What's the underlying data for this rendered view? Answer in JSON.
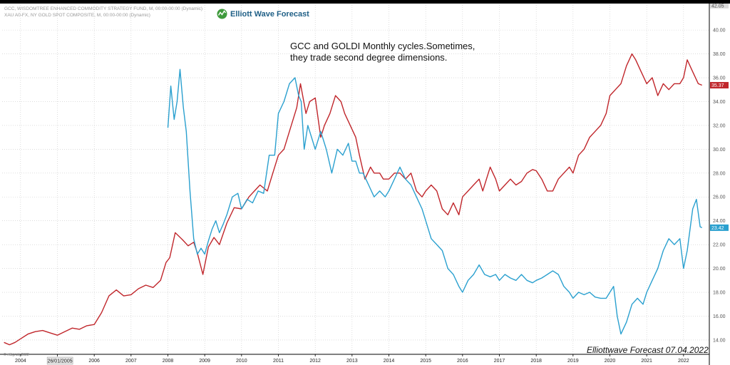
{
  "header": {
    "line1": "GCC, WISDOMTREE ENHANCED COMMODITY STRATEGY FUND, M, 00:00-00:00 (Dynamic)",
    "line2": "XAU A0-FX, NY GOLD SPOT COMPOSITE, M, 00:00-00:00 (Dynamic)"
  },
  "logo": {
    "text": "Elliott Wave Forecast"
  },
  "annotation": {
    "line1": "GCC and GOLDI Monthly cycles.Sometimes,",
    "line2": "they trade second degree dimensions."
  },
  "footer": {
    "brand": "Elliottwave Forecast  07.04.2022",
    "copyright": "© eSignal, 2022"
  },
  "colors": {
    "gcc": "#c0262b",
    "gold": "#2aa0cf",
    "gridline": "#c8c8c8",
    "axis": "#000000",
    "logo_green": "#3f9a3c",
    "logo_blue": "#1f5f86"
  },
  "chart_data": {
    "type": "line",
    "title": "",
    "xlabel": "",
    "ylabel": "",
    "xlim": [
      2003.5,
      2022.7
    ],
    "ylim": [
      12.8,
      42.1
    ],
    "y_ticks": [
      "14.00",
      "16.00",
      "18.00",
      "20.00",
      "22.00",
      "24.00",
      "26.00",
      "28.00",
      "30.00",
      "32.00",
      "34.00",
      "36.00",
      "38.00",
      "40.00"
    ],
    "x_ticks": [
      "2004",
      "2005",
      "2006",
      "2007",
      "2008",
      "2009",
      "2010",
      "2011",
      "2012",
      "2013",
      "2014",
      "2015",
      "2016",
      "2017",
      "2018",
      "2019",
      "2020",
      "2021",
      "2022"
    ],
    "x_tick_values": [
      2004,
      2005,
      2006,
      2007,
      2008,
      2009,
      2010,
      2011,
      2012,
      2013,
      2014,
      2015,
      2016,
      2017,
      2018,
      2019,
      2020,
      2021,
      2022
    ],
    "top_value_label": "42.05",
    "cursor_date_label": "26/01/2005",
    "cursor_date_value": 2005.07,
    "series": [
      {
        "name": "GCC",
        "color": "#c0262b",
        "last_value_label": "35.37",
        "x": [
          2003.55,
          2003.7,
          2003.85,
          2004.0,
          2004.2,
          2004.4,
          2004.6,
          2004.8,
          2005.0,
          2005.2,
          2005.4,
          2005.6,
          2005.8,
          2006.0,
          2006.2,
          2006.4,
          2006.6,
          2006.8,
          2007.0,
          2007.2,
          2007.4,
          2007.6,
          2007.8,
          2007.95,
          2008.05,
          2008.2,
          2008.4,
          2008.55,
          2008.7,
          2008.8,
          2008.95,
          2009.1,
          2009.25,
          2009.4,
          2009.6,
          2009.8,
          2010.0,
          2010.2,
          2010.35,
          2010.5,
          2010.7,
          2010.85,
          2011.0,
          2011.15,
          2011.3,
          2011.5,
          2011.6,
          2011.75,
          2011.85,
          2012.0,
          2012.15,
          2012.25,
          2012.4,
          2012.55,
          2012.7,
          2012.8,
          2012.95,
          2013.1,
          2013.2,
          2013.35,
          2013.5,
          2013.6,
          2013.75,
          2013.85,
          2014.0,
          2014.15,
          2014.3,
          2014.45,
          2014.6,
          2014.75,
          2014.9,
          2015.0,
          2015.15,
          2015.3,
          2015.45,
          2015.6,
          2015.75,
          2015.9,
          2016.0,
          2016.15,
          2016.3,
          2016.45,
          2016.55,
          2016.75,
          2016.9,
          2017.0,
          2017.15,
          2017.3,
          2017.45,
          2017.6,
          2017.75,
          2017.9,
          2018.0,
          2018.15,
          2018.3,
          2018.45,
          2018.6,
          2018.75,
          2018.9,
          2019.0,
          2019.15,
          2019.3,
          2019.45,
          2019.6,
          2019.75,
          2019.9,
          2020.0,
          2020.15,
          2020.3,
          2020.45,
          2020.6,
          2020.7,
          2020.85,
          2021.0,
          2021.15,
          2021.3,
          2021.45,
          2021.6,
          2021.75,
          2021.9,
          2022.0,
          2022.1,
          2022.25,
          2022.4,
          2022.5
        ],
        "values": [
          13.8,
          13.6,
          13.8,
          14.1,
          14.5,
          14.7,
          14.8,
          14.6,
          14.4,
          14.7,
          15.0,
          14.9,
          15.2,
          15.3,
          16.3,
          17.7,
          18.2,
          17.7,
          17.8,
          18.3,
          18.6,
          18.4,
          19.0,
          20.5,
          20.9,
          23.0,
          22.4,
          21.9,
          22.2,
          21.3,
          19.5,
          21.8,
          22.6,
          22.0,
          23.8,
          25.1,
          25.0,
          26.0,
          26.5,
          27.0,
          26.5,
          28.0,
          29.5,
          30.0,
          31.5,
          33.5,
          35.5,
          33.0,
          34.0,
          34.3,
          31.0,
          32.0,
          33.0,
          34.5,
          34.0,
          33.0,
          32.0,
          31.0,
          29.5,
          27.5,
          28.5,
          28.0,
          28.0,
          27.5,
          27.5,
          28.0,
          28.0,
          27.5,
          28.0,
          26.5,
          26.0,
          26.5,
          27.0,
          26.5,
          25.0,
          24.5,
          25.5,
          24.5,
          26.0,
          26.5,
          27.0,
          27.5,
          26.5,
          28.5,
          27.5,
          26.5,
          27.0,
          27.5,
          27.0,
          27.3,
          28.0,
          28.3,
          28.2,
          27.5,
          26.5,
          26.5,
          27.5,
          28.0,
          28.5,
          28.0,
          29.5,
          30.0,
          31.0,
          31.5,
          32.0,
          33.0,
          34.5,
          35.0,
          35.5,
          37.0,
          38.0,
          37.5,
          36.5,
          35.5,
          36.0,
          34.5,
          35.5,
          35.0,
          35.5,
          35.5,
          36.0,
          37.5,
          36.5,
          35.5,
          35.37
        ]
      },
      {
        "name": "GOLD",
        "color": "#2aa0cf",
        "last_value_label": "23.42",
        "x": [
          2008.0,
          2008.08,
          2008.17,
          2008.25,
          2008.33,
          2008.42,
          2008.5,
          2008.6,
          2008.7,
          2008.8,
          2008.9,
          2009.0,
          2009.1,
          2009.2,
          2009.3,
          2009.4,
          2009.5,
          2009.6,
          2009.75,
          2009.9,
          2010.0,
          2010.15,
          2010.3,
          2010.45,
          2010.6,
          2010.75,
          2010.9,
          2011.0,
          2011.15,
          2011.3,
          2011.45,
          2011.55,
          2011.62,
          2011.7,
          2011.8,
          2011.9,
          2012.0,
          2012.15,
          2012.3,
          2012.45,
          2012.6,
          2012.75,
          2012.9,
          2013.0,
          2013.1,
          2013.2,
          2013.3,
          2013.45,
          2013.6,
          2013.75,
          2013.9,
          2014.0,
          2014.15,
          2014.3,
          2014.45,
          2014.6,
          2014.75,
          2014.9,
          2015.0,
          2015.15,
          2015.3,
          2015.45,
          2015.6,
          2015.75,
          2015.9,
          2016.0,
          2016.15,
          2016.3,
          2016.45,
          2016.6,
          2016.75,
          2016.9,
          2017.0,
          2017.15,
          2017.3,
          2017.45,
          2017.6,
          2017.75,
          2017.9,
          2018.0,
          2018.15,
          2018.3,
          2018.45,
          2018.6,
          2018.75,
          2018.9,
          2019.0,
          2019.15,
          2019.3,
          2019.45,
          2019.6,
          2019.75,
          2019.9,
          2020.0,
          2020.1,
          2020.2,
          2020.3,
          2020.45,
          2020.6,
          2020.75,
          2020.9,
          2021.0,
          2021.15,
          2021.3,
          2021.45,
          2021.6,
          2021.75,
          2021.9,
          2022.0,
          2022.1,
          2022.25,
          2022.35,
          2022.45,
          2022.5
        ],
        "values": [
          31.8,
          35.3,
          32.5,
          34.0,
          36.7,
          33.5,
          31.5,
          26.5,
          22.5,
          21.2,
          21.7,
          21.2,
          22.3,
          23.3,
          24.0,
          23.0,
          23.7,
          24.5,
          26.0,
          26.3,
          25.0,
          25.8,
          25.5,
          26.5,
          26.3,
          29.5,
          29.5,
          33.0,
          34.0,
          35.5,
          36.0,
          34.5,
          34.0,
          30.0,
          32.0,
          31.0,
          30.0,
          31.5,
          30.0,
          28.0,
          30.0,
          29.5,
          30.5,
          29.0,
          29.0,
          28.0,
          28.0,
          27.0,
          26.0,
          26.5,
          26.0,
          26.5,
          27.5,
          28.5,
          27.5,
          27.0,
          26.0,
          25.0,
          24.0,
          22.5,
          22.0,
          21.5,
          20.0,
          19.5,
          18.5,
          18.0,
          19.0,
          19.5,
          20.3,
          19.5,
          19.3,
          19.5,
          19.0,
          19.5,
          19.2,
          19.0,
          19.5,
          19.0,
          18.8,
          19.0,
          19.2,
          19.5,
          19.8,
          19.5,
          18.5,
          18.0,
          17.5,
          18.0,
          17.8,
          18.0,
          17.6,
          17.5,
          17.5,
          18.0,
          18.5,
          16.0,
          14.5,
          15.5,
          17.0,
          17.5,
          17.0,
          18.0,
          19.0,
          20.0,
          21.5,
          22.5,
          22.0,
          22.5,
          20.0,
          21.5,
          25.0,
          25.8,
          23.5,
          23.42
        ]
      }
    ]
  }
}
